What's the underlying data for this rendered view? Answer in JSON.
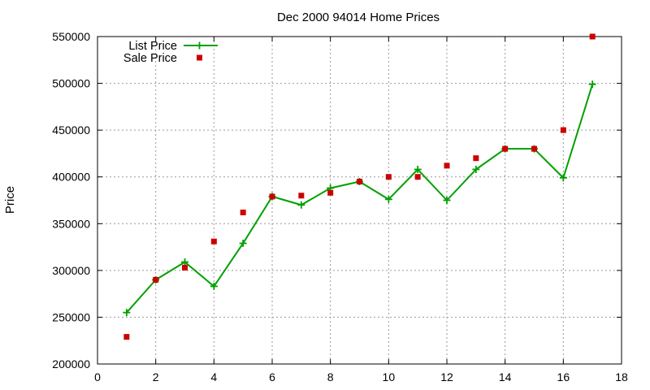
{
  "chart_data": {
    "type": "line",
    "title": "Dec 2000 94014 Home Prices",
    "xlabel": "",
    "ylabel": "Price",
    "xlim": [
      0,
      18
    ],
    "ylim": [
      200000,
      550000
    ],
    "xticks": [
      0,
      2,
      4,
      6,
      8,
      10,
      12,
      14,
      16,
      18
    ],
    "yticks": [
      200000,
      250000,
      300000,
      350000,
      400000,
      450000,
      500000,
      550000
    ],
    "grid": true,
    "legend_position": "top-left",
    "series": [
      {
        "name": "List Price",
        "style": "line+markers",
        "marker": "plus",
        "color": "#00a000",
        "x": [
          1,
          2,
          3,
          4,
          5,
          6,
          7,
          8,
          9,
          10,
          11,
          12,
          13,
          14,
          15,
          16,
          17
        ],
        "y": [
          255000,
          290000,
          309000,
          283000,
          329000,
          379000,
          370000,
          388000,
          395000,
          376000,
          408000,
          375000,
          408000,
          430000,
          430000,
          399000,
          499000
        ]
      },
      {
        "name": "Sale Price",
        "style": "points",
        "marker": "square",
        "color": "#cc0000",
        "x": [
          1,
          2,
          3,
          4,
          5,
          6,
          7,
          8,
          9,
          10,
          11,
          12,
          13,
          14,
          15,
          16,
          17
        ],
        "y": [
          229000,
          290000,
          303000,
          331000,
          362000,
          379000,
          380000,
          383000,
          395000,
          400000,
          400000,
          412000,
          420000,
          430000,
          430000,
          450000,
          550000
        ]
      }
    ]
  }
}
